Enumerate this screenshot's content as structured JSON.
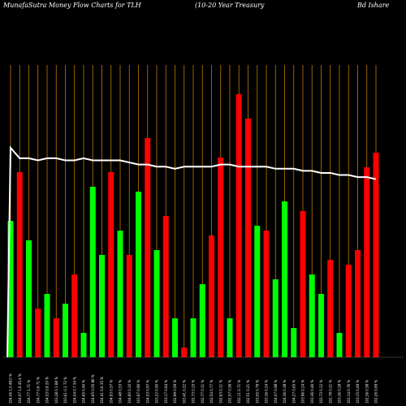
{
  "chart_data": {
    "type": "bar",
    "title_left": "MunafaSutra  Money Flow  Charts for TLH",
    "title_mid": "(10-20  Year Treasury",
    "title_right": "Bd Ishare",
    "categories": [
      "104.06 1.0 48.0 %",
      "104.07 1.6 45.4 %",
      "104.77 1.71 %",
      "104.77 0.6 71 %",
      "104.53 0.8 20 %",
      "103.28 0.1 88 %",
      "103.61 0.1 72 %",
      "104.04 0.7 34 %",
      "104.65 0.40 %",
      "104.65 0.05 86 %",
      "104.41 0.6 35 %",
      "104.93 0.57 %",
      "104.48 0.53 %",
      "104.60 0.10 %",
      "103.97 0.90 %",
      "104.53 0.97 %",
      "103.22 0.50 %",
      "103.17 0.64 %",
      "102.99 0.59 %",
      "103.41 0.22 %",
      "102.73 0.15 %",
      "102.77 0.11 %",
      "102.54 0.77 %",
      "102.63 0.11 %",
      "102.57 0.56 %",
      "102.11 0.71 %",
      "102.51 0.21 %",
      "103.05 0.79 %",
      "103.36 0.24 %",
      "104.07 0.98 %",
      "104.36 0.38 %",
      "104.27 0.65 %",
      "103.96 0.24 %",
      "103.36 0.46 %",
      "102.73 0.12 %",
      "102.78 0.21 %",
      "103.36 0.28 %",
      "102.14 0.76 %",
      "103.15 0.49 %",
      "102.36 0.58 %",
      "102.26 0.69 %"
    ],
    "values": [
      28,
      38,
      24,
      10,
      13,
      8,
      11,
      17,
      5,
      35,
      21,
      38,
      26,
      21,
      34,
      45,
      22,
      29,
      8,
      2,
      8,
      15,
      25,
      41,
      8,
      54,
      49,
      27,
      26,
      16,
      32,
      6,
      30,
      17,
      13,
      20,
      5,
      19,
      22,
      39,
      42
    ],
    "colors": [
      "green",
      "red",
      "green",
      "red",
      "green",
      "red",
      "green",
      "red",
      "green",
      "green",
      "green",
      "red",
      "green",
      "red",
      "green",
      "red",
      "green",
      "red",
      "green",
      "red",
      "green",
      "green",
      "red",
      "red",
      "green",
      "red",
      "red",
      "green",
      "red",
      "green",
      "green",
      "green",
      "red",
      "green",
      "green",
      "red",
      "green",
      "red",
      "red",
      "red",
      "red"
    ],
    "price_line": [
      100,
      95,
      95,
      94,
      95,
      95,
      94,
      94,
      95,
      94,
      94,
      94,
      94,
      93,
      92,
      92,
      91,
      91,
      90,
      91,
      91,
      91,
      91,
      92,
      92,
      91,
      91,
      91,
      91,
      90,
      90,
      90,
      89,
      89,
      88,
      88,
      87,
      87,
      86,
      86,
      85
    ],
    "ylim": [
      0,
      60
    ],
    "grid": true,
    "palette": {
      "green": "#00ff00",
      "red": "#ff0000",
      "line": "#ffffff",
      "grid": "#c27800",
      "background": "#000000"
    }
  }
}
